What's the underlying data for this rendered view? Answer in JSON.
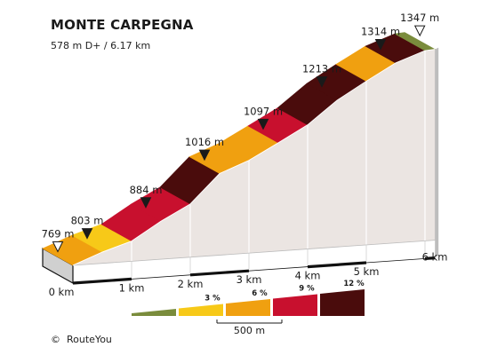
{
  "title": "MONTE CARPEGNA",
  "subtitle": "578 m D+ / 6.17 km",
  "credit": "RouteYou",
  "credit_icon": "copyright-icon",
  "colors": {
    "0": "#7a8c3c",
    "3": "#f7c918",
    "6": "#f0a010",
    "9": "#c8102e",
    "12": "#4a0c0c",
    "wall": "#ebe5e2",
    "base": "#d0d0d0"
  },
  "chart_data": {
    "type": "area",
    "xlabel": "",
    "ylabel": "",
    "x_unit": "km",
    "y_unit": "m",
    "xlim": [
      0,
      6.17
    ],
    "ylim": [
      769,
      1347
    ],
    "x_ticks": [
      {
        "value": 0,
        "label": "0 km"
      },
      {
        "value": 1,
        "label": "1 km"
      },
      {
        "value": 2,
        "label": "2 km"
      },
      {
        "value": 3,
        "label": "3 km"
      },
      {
        "value": 4,
        "label": "4 km"
      },
      {
        "value": 5,
        "label": "5 km"
      },
      {
        "value": 6,
        "label": "6 km"
      }
    ],
    "segments": [
      {
        "x0": 0.0,
        "x1": 0.5,
        "y0": 769,
        "y1": 803,
        "grade": "6"
      },
      {
        "x0": 0.5,
        "x1": 1.0,
        "y0": 803,
        "y1": 830,
        "grade": "3"
      },
      {
        "x0": 1.0,
        "x1": 1.5,
        "y0": 830,
        "y1": 884,
        "grade": "9"
      },
      {
        "x0": 1.5,
        "x1": 2.0,
        "y0": 884,
        "y1": 930,
        "grade": "9"
      },
      {
        "x0": 2.0,
        "x1": 2.5,
        "y0": 930,
        "y1": 1016,
        "grade": "12"
      },
      {
        "x0": 2.5,
        "x1": 3.0,
        "y0": 1016,
        "y1": 1050,
        "grade": "6"
      },
      {
        "x0": 3.0,
        "x1": 3.5,
        "y0": 1050,
        "y1": 1097,
        "grade": "6"
      },
      {
        "x0": 3.5,
        "x1": 4.0,
        "y0": 1097,
        "y1": 1145,
        "grade": "9"
      },
      {
        "x0": 4.0,
        "x1": 4.5,
        "y0": 1145,
        "y1": 1213,
        "grade": "12"
      },
      {
        "x0": 4.5,
        "x1": 5.0,
        "y0": 1213,
        "y1": 1265,
        "grade": "12"
      },
      {
        "x0": 5.0,
        "x1": 5.5,
        "y0": 1265,
        "y1": 1314,
        "grade": "6"
      },
      {
        "x0": 5.5,
        "x1": 6.0,
        "y0": 1314,
        "y1": 1345,
        "grade": "12"
      },
      {
        "x0": 6.0,
        "x1": 6.17,
        "y0": 1345,
        "y1": 1347,
        "grade": "0"
      }
    ],
    "markers": [
      {
        "x": 0.0,
        "elevation": 769,
        "label": "769 m",
        "style": "hollow"
      },
      {
        "x": 0.5,
        "elevation": 803,
        "label": "803 m",
        "style": "filled"
      },
      {
        "x": 1.5,
        "elevation": 884,
        "label": "884 m",
        "style": "filled"
      },
      {
        "x": 2.5,
        "elevation": 1016,
        "label": "1016 m",
        "style": "filled"
      },
      {
        "x": 3.5,
        "elevation": 1097,
        "label": "1097 m",
        "style": "filled"
      },
      {
        "x": 4.5,
        "elevation": 1213,
        "label": "1213 m",
        "style": "filled"
      },
      {
        "x": 5.5,
        "elevation": 1314,
        "label": "1314 m",
        "style": "filled"
      },
      {
        "x": 6.17,
        "elevation": 1347,
        "label": "1347 m",
        "style": "hollow"
      }
    ],
    "legend": {
      "placement": "bottom-center",
      "entries": [
        {
          "grade": "0",
          "label": ""
        },
        {
          "grade": "3",
          "label": "3 %"
        },
        {
          "grade": "6",
          "label": "6 %"
        },
        {
          "grade": "9",
          "label": "9 %"
        },
        {
          "grade": "12",
          "label": "12 %"
        }
      ],
      "scale_label": "500 m"
    }
  }
}
